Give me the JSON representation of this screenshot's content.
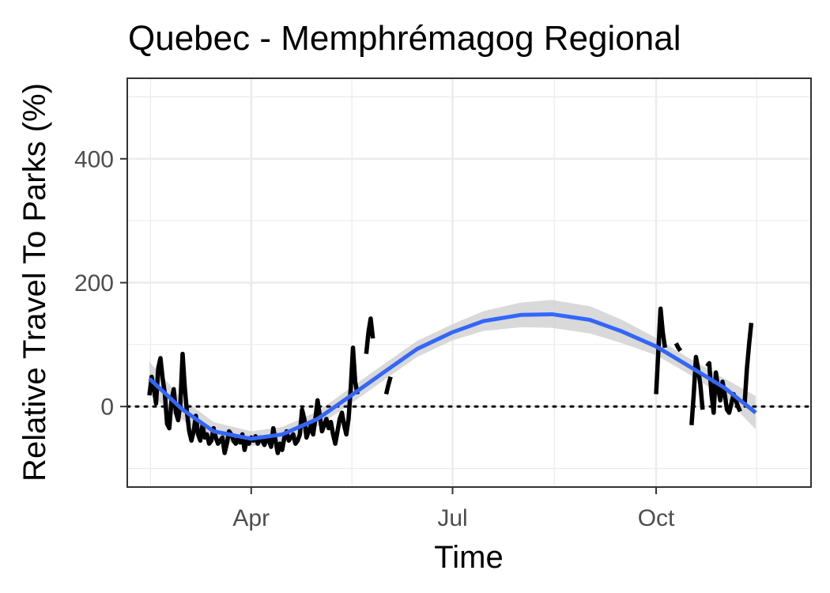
{
  "chart_data": {
    "type": "line",
    "title": "Quebec - Memphrémagog Regional",
    "xlabel": "Time",
    "ylabel": "Relative Travel To Parks (%)",
    "x_ticks": [
      {
        "date": "2020-04-01",
        "label": "Apr"
      },
      {
        "date": "2020-07-01",
        "label": "Jul"
      },
      {
        "date": "2020-10-01",
        "label": "Oct"
      }
    ],
    "x_range": [
      "2020-02-05",
      "2020-12-10"
    ],
    "y_ticks": [
      0,
      200,
      400
    ],
    "ylim": [
      -130,
      530
    ],
    "reference_line": {
      "y": 0,
      "style": "dotted"
    },
    "grid": true,
    "colors": {
      "observed": "#000000",
      "smooth": "#3366ff",
      "band": "#cccccc"
    },
    "series": [
      {
        "style": "thick-black-line",
        "segments": [
          [
            [
              "2020-02-15",
              18
            ],
            [
              "2020-02-16",
              48
            ],
            [
              "2020-02-17",
              30
            ],
            [
              "2020-02-18",
              5
            ],
            [
              "2020-02-19",
              62
            ],
            [
              "2020-02-20",
              78
            ],
            [
              "2020-02-21",
              45
            ],
            [
              "2020-02-22",
              20
            ],
            [
              "2020-02-23",
              -28
            ],
            [
              "2020-02-24",
              -35
            ],
            [
              "2020-02-25",
              10
            ],
            [
              "2020-02-26",
              28
            ],
            [
              "2020-02-27",
              -10
            ],
            [
              "2020-02-28",
              -22
            ],
            [
              "2020-02-29",
              5
            ],
            [
              "2020-03-01",
              85
            ],
            [
              "2020-03-02",
              30
            ],
            [
              "2020-03-03",
              -10
            ],
            [
              "2020-03-04",
              -40
            ],
            [
              "2020-03-05",
              -55
            ],
            [
              "2020-03-06",
              -40
            ],
            [
              "2020-03-07",
              -15
            ],
            [
              "2020-03-08",
              -45
            ],
            [
              "2020-03-09",
              -55
            ],
            [
              "2020-03-10",
              -30
            ],
            [
              "2020-03-11",
              -50
            ],
            [
              "2020-03-12",
              -45
            ],
            [
              "2020-03-13",
              -60
            ],
            [
              "2020-03-14",
              -55
            ],
            [
              "2020-03-15",
              -35
            ],
            [
              "2020-03-16",
              -50
            ],
            [
              "2020-03-17",
              -60
            ],
            [
              "2020-03-18",
              -55
            ],
            [
              "2020-03-19",
              -50
            ],
            [
              "2020-03-20",
              -75
            ],
            [
              "2020-03-21",
              -60
            ],
            [
              "2020-03-22",
              -40
            ],
            [
              "2020-03-23",
              -45
            ],
            [
              "2020-03-24",
              -55
            ],
            [
              "2020-03-25",
              -60
            ],
            [
              "2020-03-26",
              -50
            ],
            [
              "2020-03-27",
              -58
            ],
            [
              "2020-03-28",
              -45
            ],
            [
              "2020-03-29",
              -70
            ],
            [
              "2020-03-30",
              -55
            ],
            [
              "2020-03-31",
              -60
            ],
            [
              "2020-04-01",
              -50
            ],
            [
              "2020-04-02",
              -55
            ],
            [
              "2020-04-03",
              -48
            ],
            [
              "2020-04-04",
              -60
            ],
            [
              "2020-04-05",
              -50
            ],
            [
              "2020-04-06",
              -55
            ],
            [
              "2020-04-07",
              -62
            ],
            [
              "2020-04-08",
              -50
            ],
            [
              "2020-04-09",
              -55
            ],
            [
              "2020-04-10",
              -65
            ],
            [
              "2020-04-11",
              -35
            ],
            [
              "2020-04-12",
              -55
            ],
            [
              "2020-04-13",
              -75
            ],
            [
              "2020-04-14",
              -60
            ],
            [
              "2020-04-15",
              -70
            ],
            [
              "2020-04-16",
              -50
            ],
            [
              "2020-04-17",
              -40
            ],
            [
              "2020-04-18",
              -55
            ],
            [
              "2020-04-19",
              -50
            ],
            [
              "2020-04-20",
              -45
            ],
            [
              "2020-04-21",
              -60
            ],
            [
              "2020-04-22",
              -55
            ],
            [
              "2020-04-23",
              -45
            ],
            [
              "2020-04-24",
              -5
            ],
            [
              "2020-04-25",
              -20
            ],
            [
              "2020-04-26",
              -50
            ],
            [
              "2020-04-27",
              -40
            ],
            [
              "2020-04-28",
              -30
            ],
            [
              "2020-04-29",
              -45
            ],
            [
              "2020-04-30",
              -20
            ],
            [
              "2020-05-01",
              10
            ],
            [
              "2020-05-02",
              -15
            ],
            [
              "2020-05-03",
              -40
            ],
            [
              "2020-05-04",
              -30
            ],
            [
              "2020-05-05",
              -20
            ],
            [
              "2020-05-06",
              -35
            ],
            [
              "2020-05-07",
              -25
            ],
            [
              "2020-05-08",
              -45
            ],
            [
              "2020-05-09",
              -60
            ],
            [
              "2020-05-10",
              -40
            ],
            [
              "2020-05-11",
              -20
            ],
            [
              "2020-05-12",
              -10
            ],
            [
              "2020-05-13",
              -30
            ],
            [
              "2020-05-14",
              -45
            ],
            [
              "2020-05-15",
              -20
            ],
            [
              "2020-05-16",
              30
            ],
            [
              "2020-05-17",
              95
            ],
            [
              "2020-05-18",
              40
            ],
            [
              "2020-05-19",
              20
            ]
          ],
          [
            [
              "2020-05-23",
              85
            ],
            [
              "2020-05-24",
              120
            ],
            [
              "2020-05-25",
              142
            ],
            [
              "2020-05-26",
              110
            ]
          ],
          [
            [
              "2020-06-01",
              20
            ],
            [
              "2020-06-02",
              35
            ],
            [
              "2020-06-03",
              48
            ]
          ],
          [
            [
              "2020-10-01",
              20
            ],
            [
              "2020-10-02",
              90
            ],
            [
              "2020-10-03",
              158
            ],
            [
              "2020-10-04",
              120
            ],
            [
              "2020-10-05",
              95
            ]
          ],
          [
            [
              "2020-10-10",
              102
            ],
            [
              "2020-10-11",
              95
            ],
            [
              "2020-10-12",
              90
            ]
          ],
          [
            [
              "2020-10-17",
              -30
            ],
            [
              "2020-10-18",
              20
            ],
            [
              "2020-10-19",
              80
            ],
            [
              "2020-10-20",
              60
            ],
            [
              "2020-10-21",
              35
            ],
            [
              "2020-10-22",
              -5
            ]
          ],
          [
            [
              "2020-10-24",
              65
            ],
            [
              "2020-10-25",
              70
            ],
            [
              "2020-10-26",
              20
            ],
            [
              "2020-10-27",
              -10
            ],
            [
              "2020-10-28",
              55
            ],
            [
              "2020-10-29",
              30
            ],
            [
              "2020-10-30",
              10
            ],
            [
              "2020-10-31",
              40
            ],
            [
              "2020-11-01",
              20
            ],
            [
              "2020-11-02",
              -5
            ],
            [
              "2020-11-03",
              -10
            ],
            [
              "2020-11-04",
              5
            ],
            [
              "2020-11-05",
              20
            ],
            [
              "2020-11-06",
              10
            ],
            [
              "2020-11-07",
              0
            ],
            [
              "2020-11-08",
              -8
            ]
          ],
          [
            [
              "2020-11-10",
              5
            ],
            [
              "2020-11-11",
              60
            ],
            [
              "2020-11-12",
              100
            ],
            [
              "2020-11-13",
              135
            ]
          ]
        ]
      },
      {
        "style": "smooth-blue-line-with-confidence-band",
        "points": [
          [
            "2020-02-15",
            45,
            20,
            72
          ],
          [
            "2020-03-01",
            -5,
            -22,
            12
          ],
          [
            "2020-03-15",
            -40,
            -55,
            -25
          ],
          [
            "2020-04-01",
            -52,
            -64,
            -40
          ],
          [
            "2020-04-15",
            -45,
            -57,
            -33
          ],
          [
            "2020-05-01",
            -20,
            -32,
            -8
          ],
          [
            "2020-05-15",
            15,
            2,
            28
          ],
          [
            "2020-06-01",
            58,
            45,
            71
          ],
          [
            "2020-06-15",
            93,
            80,
            106
          ],
          [
            "2020-07-01",
            120,
            107,
            133
          ],
          [
            "2020-07-15",
            138,
            122,
            154
          ],
          [
            "2020-08-01",
            148,
            128,
            168
          ],
          [
            "2020-08-15",
            149,
            127,
            172
          ],
          [
            "2020-09-01",
            140,
            118,
            162
          ],
          [
            "2020-09-15",
            122,
            103,
            141
          ],
          [
            "2020-10-01",
            97,
            83,
            111
          ],
          [
            "2020-10-15",
            67,
            54,
            80
          ],
          [
            "2020-11-01",
            30,
            15,
            45
          ],
          [
            "2020-11-15",
            -10,
            -37,
            17
          ]
        ]
      }
    ]
  }
}
